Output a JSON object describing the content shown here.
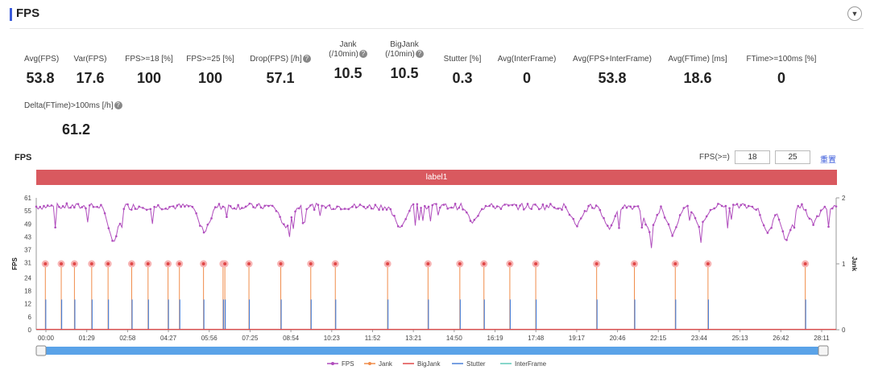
{
  "header": {
    "title": "FPS",
    "collapse_icon": "chevron-down-icon"
  },
  "metrics": [
    {
      "label": "Avg(FPS)",
      "value": "53.8",
      "help": false
    },
    {
      "label": "Var(FPS)",
      "value": "17.6",
      "help": false
    },
    {
      "label": "FPS>=18 [%]",
      "value": "100",
      "help": false
    },
    {
      "label": "FPS>=25 [%]",
      "value": "100",
      "help": false
    },
    {
      "label": "Drop(FPS) [/h]",
      "value": "57.1",
      "help": true
    },
    {
      "label": "Jank\n(/10min)",
      "value": "10.5",
      "help": true
    },
    {
      "label": "BigJank\n(/10min)",
      "value": "10.5",
      "help": true
    },
    {
      "label": "Stutter [%]",
      "value": "0.3",
      "help": false
    },
    {
      "label": "Avg(InterFrame)",
      "value": "0",
      "help": false
    },
    {
      "label": "Avg(FPS+InterFrame)",
      "value": "53.8",
      "help": false
    },
    {
      "label": "Avg(FTime) [ms]",
      "value": "18.6",
      "help": false
    },
    {
      "label": "FTime>=100ms [%]",
      "value": "0",
      "help": false
    },
    {
      "label": "Delta(FTime)>100ms [/h]",
      "value": "61.2",
      "help": true
    }
  ],
  "chart_controls": {
    "title": "FPS",
    "threshold_label": "FPS(>=)",
    "threshold_low": "18",
    "threshold_high": "25",
    "reset_label": "重置",
    "segment_label": "label1"
  },
  "chart_data": {
    "type": "line",
    "title": "FPS",
    "ylabel": "FPS",
    "y2label": "Jank",
    "ylim": [
      0,
      61
    ],
    "y_ticks": [
      "0",
      "6",
      "12",
      "18",
      "24",
      "31",
      "37",
      "43",
      "49",
      "55",
      "61"
    ],
    "y2lim": [
      0,
      2
    ],
    "y2_ticks": [
      "0",
      "1",
      "2"
    ],
    "x_ticks": [
      "00:00",
      "01:29",
      "02:58",
      "04:27",
      "05:56",
      "07:25",
      "08:54",
      "10:23",
      "11:52",
      "13:21",
      "14:50",
      "16:19",
      "17:48",
      "19:17",
      "20:46",
      "22:15",
      "23:44",
      "25:13",
      "26:42",
      "28:11"
    ],
    "x_range_seconds": [
      0,
      1760
    ],
    "fps_baseline": 57,
    "fps_dips": [
      {
        "t": 170,
        "fps": 40
      },
      {
        "t": 370,
        "fps": 44
      },
      {
        "t": 550,
        "fps": 46
      },
      {
        "t": 800,
        "fps": 47
      },
      {
        "t": 960,
        "fps": 50
      },
      {
        "t": 1190,
        "fps": 48
      },
      {
        "t": 1260,
        "fps": 46
      },
      {
        "t": 1350,
        "fps": 44
      },
      {
        "t": 1400,
        "fps": 43
      },
      {
        "t": 1460,
        "fps": 47
      },
      {
        "t": 1610,
        "fps": 44
      },
      {
        "t": 1650,
        "fps": 40
      },
      {
        "t": 1710,
        "fps": 49
      }
    ],
    "jank_events_seconds": [
      20,
      55,
      84,
      122,
      158,
      210,
      246,
      290,
      315,
      368,
      411,
      415,
      468,
      538,
      604,
      658,
      773,
      862,
      932,
      985,
      1042,
      1099,
      1233,
      1316,
      1406,
      1478,
      1692
    ],
    "jank_value": 1,
    "stutter_value_fps": 14,
    "legend": [
      "FPS",
      "Jank",
      "BigJank",
      "Stutter",
      "InterFrame"
    ],
    "colors": {
      "fps": "#b04dbd",
      "jank": "#f08c4a",
      "jank_dot": "#e04848",
      "jank_halo": "#f7b3b3",
      "bigjank": "#e04848",
      "stutter": "#4a80d8",
      "interframe": "#5fc8b8",
      "slider": "#5aa3e8"
    }
  }
}
